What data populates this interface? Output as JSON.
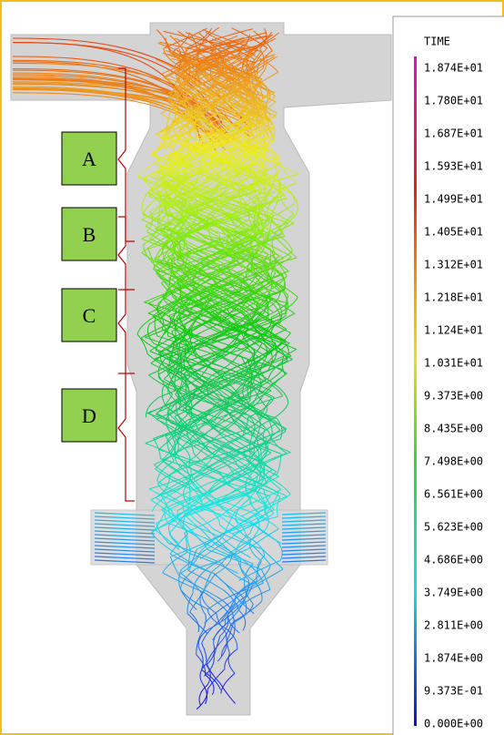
{
  "legend": {
    "title": "TIME",
    "labels": [
      "1.874E+01",
      "1.780E+01",
      "1.687E+01",
      "1.593E+01",
      "1.499E+01",
      "1.405E+01",
      "1.312E+01",
      "1.218E+01",
      "1.124E+01",
      "1.031E+01",
      "9.373E+00",
      "8.435E+00",
      "7.498E+00",
      "6.561E+00",
      "5.623E+00",
      "4.686E+00",
      "3.749E+00",
      "2.811E+00",
      "1.874E+00",
      "9.373E-01",
      "0.000E+00"
    ]
  },
  "regions": [
    "A",
    "B",
    "C",
    "D"
  ]
}
